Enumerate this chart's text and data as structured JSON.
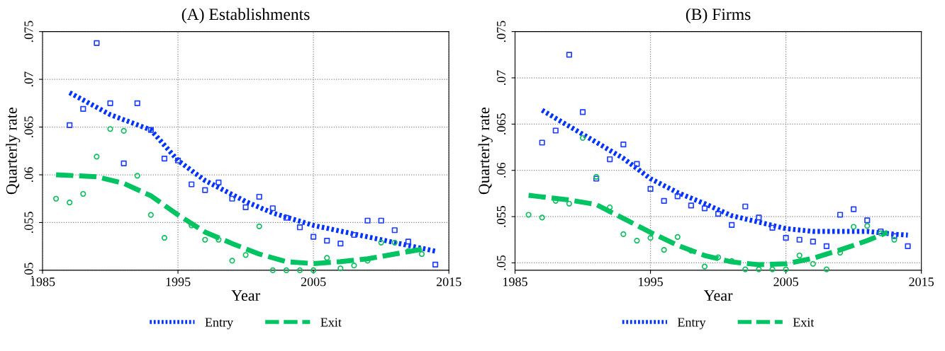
{
  "chart_data": [
    {
      "type": "scatter",
      "title": "(A) Establishments",
      "xlabel": "Year",
      "ylabel": "Quarterly rate",
      "xlim": [
        1985,
        2015
      ],
      "xticks": [
        1985,
        1995,
        2005,
        2015
      ],
      "ylim": [
        0.05,
        0.075
      ],
      "yticks": [
        {
          "value": 0.05,
          "label": ".05"
        },
        {
          "value": 0.055,
          "label": ".055"
        },
        {
          "value": 0.06,
          "label": ".06"
        },
        {
          "value": 0.065,
          "label": ".065"
        },
        {
          "value": 0.07,
          "label": ".07"
        },
        {
          "value": 0.075,
          "label": ".075"
        }
      ],
      "grid": true,
      "legend": "bottom",
      "series": [
        {
          "marker": "square",
          "color": "#1f3fff",
          "x": [
            1987,
            1988,
            1989,
            1990,
            1991,
            1992,
            1993,
            1994,
            1995,
            1996,
            1997,
            1998,
            1999,
            2000,
            2001,
            2002,
            2003,
            2004,
            2005,
            2006,
            2007,
            2008,
            2009,
            2010,
            2011,
            2012,
            2013,
            2014
          ],
          "values": [
            0.0652,
            0.0669,
            0.0738,
            0.0675,
            0.0612,
            0.0675,
            0.0647,
            0.0617,
            0.0615,
            0.059,
            0.0584,
            0.0592,
            0.0575,
            0.0566,
            0.0577,
            0.0565,
            0.0555,
            0.0545,
            0.0535,
            0.0531,
            0.0528,
            0.0537,
            0.0552,
            0.0552,
            0.0542,
            0.053,
            null,
            0.0506
          ]
        },
        {
          "marker": "circle",
          "color": "#10c060",
          "x": [
            1986,
            1987,
            1988,
            1989,
            1990,
            1991,
            1992,
            1993,
            1994,
            1995,
            1996,
            1997,
            1998,
            1999,
            2000,
            2001,
            2002,
            2003,
            2004,
            2005,
            2006,
            2007,
            2008,
            2009,
            2010,
            2011,
            2012,
            2013
          ],
          "values": [
            0.0575,
            0.0571,
            0.058,
            0.0619,
            0.0648,
            0.0646,
            0.0599,
            0.0558,
            0.0534,
            null,
            0.0547,
            0.0532,
            0.0532,
            0.051,
            0.0516,
            0.0546,
            0.05,
            0.05,
            0.05,
            0.05,
            0.0513,
            0.0502,
            0.0505,
            0.051,
            0.0529,
            0.0529,
            0.052,
            0.0517
          ]
        },
        {
          "type": "line",
          "name": "Entry",
          "line_style": "dotted",
          "color": "#0033ff",
          "x": [
            1987,
            1990,
            1993,
            1995,
            1997,
            2000,
            2002,
            2005,
            2008,
            2011,
            2014
          ],
          "values": [
            0.0686,
            0.0663,
            0.0647,
            0.0615,
            0.0594,
            0.0572,
            0.056,
            0.0547,
            0.0538,
            0.0529,
            0.052
          ]
        },
        {
          "type": "line",
          "name": "Exit",
          "line_style": "dashed",
          "color": "#00c462",
          "x": [
            1986,
            1989,
            1991,
            1993,
            1995,
            1997,
            1999,
            2001,
            2003,
            2005,
            2007,
            2009,
            2011,
            2013
          ],
          "values": [
            0.06,
            0.0598,
            0.0591,
            0.0578,
            0.0558,
            0.054,
            0.0528,
            0.0517,
            0.0509,
            0.0507,
            0.0509,
            0.0512,
            0.0517,
            0.0522
          ]
        }
      ]
    },
    {
      "type": "scatter",
      "title": "(B) Firms",
      "xlabel": "Year",
      "ylabel": "Quarterly rate",
      "xlim": [
        1985,
        2015
      ],
      "xticks": [
        1985,
        1995,
        2005,
        2015
      ],
      "ylim": [
        0.0492,
        0.075
      ],
      "yticks": [
        {
          "value": 0.05,
          "label": ".05"
        },
        {
          "value": 0.055,
          "label": ".055"
        },
        {
          "value": 0.06,
          "label": ".06"
        },
        {
          "value": 0.065,
          "label": ".065"
        },
        {
          "value": 0.07,
          "label": ".07"
        },
        {
          "value": 0.075,
          "label": ".075"
        }
      ],
      "grid": true,
      "legend": "bottom",
      "series": [
        {
          "marker": "square",
          "color": "#1f3fff",
          "x": [
            1987,
            1988,
            1989,
            1990,
            1991,
            1992,
            1993,
            1994,
            1995,
            1996,
            1997,
            1998,
            1999,
            2000,
            2001,
            2002,
            2003,
            2004,
            2005,
            2006,
            2007,
            2008,
            2009,
            2010,
            2011,
            2012,
            2013,
            2014
          ],
          "values": [
            0.063,
            0.0643,
            0.0725,
            0.0663,
            0.0591,
            0.0612,
            0.0628,
            0.0607,
            0.058,
            0.0567,
            0.0572,
            0.0562,
            0.0559,
            0.0553,
            0.0541,
            0.0561,
            0.0549,
            0.0538,
            0.0527,
            0.0525,
            0.0523,
            0.0518,
            0.0552,
            0.0558,
            0.0546,
            0.0534,
            0.0529,
            0.0518
          ]
        },
        {
          "marker": "circle",
          "color": "#10c060",
          "x": [
            1986,
            1987,
            1988,
            1989,
            1990,
            1991,
            1992,
            1993,
            1994,
            1995,
            1996,
            1997,
            1998,
            1999,
            2000,
            2001,
            2002,
            2003,
            2004,
            2005,
            2006,
            2007,
            2008,
            2009,
            2010,
            2011,
            2012,
            2013
          ],
          "values": [
            0.0552,
            0.0549,
            0.0567,
            0.0564,
            0.0635,
            0.0593,
            0.056,
            0.0531,
            0.0524,
            0.0527,
            0.0514,
            0.0528,
            0.0513,
            0.0496,
            0.0506,
            0.0502,
            0.0493,
            0.0493,
            0.0493,
            0.0493,
            0.0508,
            0.0499,
            0.0493,
            0.0511,
            0.0539,
            0.054,
            0.0532,
            0.0525
          ]
        },
        {
          "type": "line",
          "name": "Entry",
          "line_style": "dotted",
          "color": "#0033ff",
          "x": [
            1987,
            1990,
            1993,
            1995,
            1997,
            1999,
            2001,
            2003,
            2005,
            2007,
            2009,
            2011,
            2013,
            2014
          ],
          "values": [
            0.0665,
            0.0639,
            0.0613,
            0.0591,
            0.0576,
            0.0564,
            0.0551,
            0.0544,
            0.0537,
            0.0534,
            0.0534,
            0.0534,
            0.0531,
            0.053
          ]
        },
        {
          "type": "line",
          "name": "Exit",
          "line_style": "dashed",
          "color": "#00c462",
          "x": [
            1986,
            1989,
            1991,
            1993,
            1995,
            1997,
            1999,
            2001,
            2003,
            2005,
            2007,
            2009,
            2011,
            2012.5
          ],
          "values": [
            0.0573,
            0.0568,
            0.0563,
            0.0548,
            0.0533,
            0.0519,
            0.0508,
            0.0501,
            0.0498,
            0.0499,
            0.0505,
            0.0514,
            0.0524,
            0.0533
          ]
        }
      ]
    }
  ]
}
